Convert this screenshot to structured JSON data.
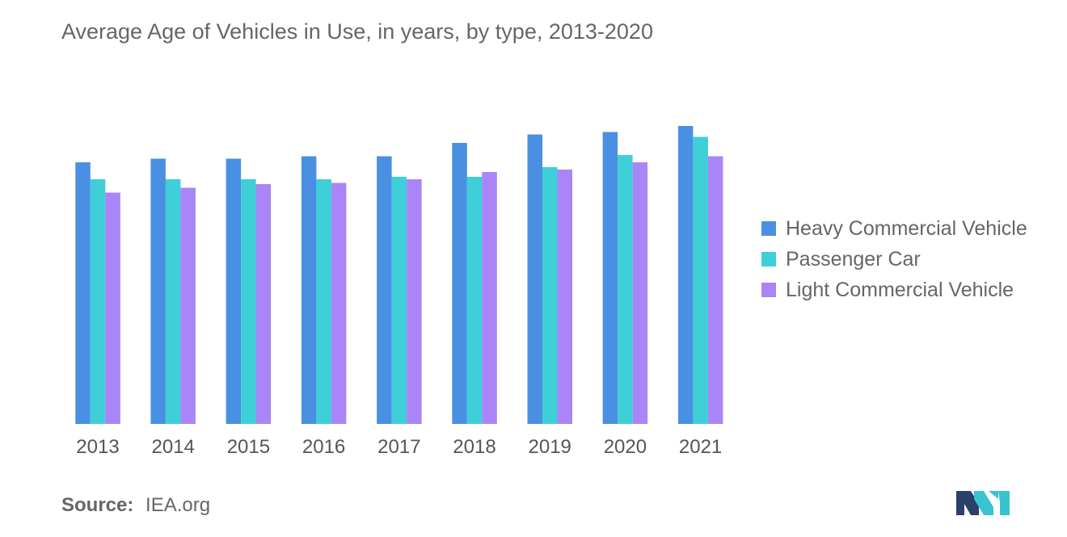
{
  "title": "Average Age of Vehicles in Use, in years, by type, 2013-2020",
  "source": {
    "label": "Source:",
    "value": "IEA.org"
  },
  "logo": {
    "icon": "mordor-intelligence-logo-icon"
  },
  "chart_data": {
    "type": "bar",
    "title": "Average Age of Vehicles in Use, in years, by type, 2013-2020",
    "xlabel": "",
    "ylabel": "",
    "categories": [
      "2013",
      "2014",
      "2015",
      "2016",
      "2017",
      "2018",
      "2019",
      "2020",
      "2021"
    ],
    "series": [
      {
        "name": "Heavy Commercial Vehicle",
        "color": "#4a90e2",
        "values": [
          10.8,
          10.95,
          10.95,
          11.05,
          11.05,
          11.6,
          11.95,
          12.05,
          12.3
        ]
      },
      {
        "name": "Passenger Car",
        "color": "#3ecfd8",
        "values": [
          10.1,
          10.1,
          10.1,
          10.1,
          10.2,
          10.2,
          10.6,
          11.1,
          11.85
        ]
      },
      {
        "name": "Light Commercial Vehicle",
        "color": "#a985f7",
        "values": [
          9.55,
          9.75,
          9.9,
          9.95,
          10.1,
          10.4,
          10.5,
          10.8,
          11.05
        ]
      }
    ],
    "ylim": [
      0,
      17.5
    ],
    "grid": false,
    "legend_position": "right"
  }
}
